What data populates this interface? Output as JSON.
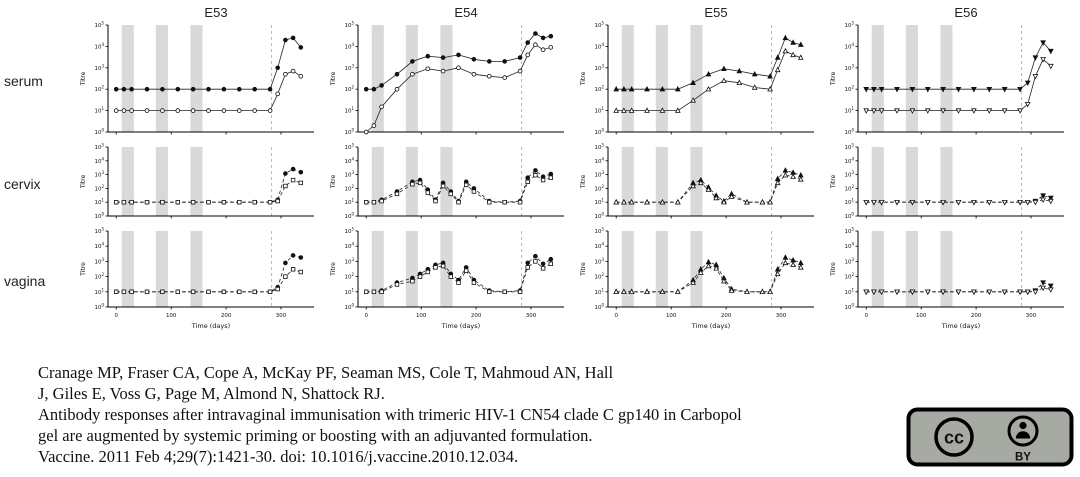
{
  "figure": {
    "columns": [
      "E53",
      "E54",
      "E55",
      "E56"
    ],
    "rows": [
      "serum",
      "cervix",
      "vagina"
    ],
    "axis": {
      "xlabel": "Time (days)",
      "ylabel": "Titre",
      "xticks": [
        0,
        100,
        200,
        300
      ],
      "xlim": [
        -15,
        360
      ],
      "ylim_exp": [
        0,
        5
      ],
      "bands": [
        [
          10,
          32
        ],
        [
          72,
          94
        ],
        [
          135,
          157
        ]
      ],
      "vline": 283
    }
  },
  "chart_data": [
    {
      "id": "E53-serum",
      "type": "line",
      "log_y": true,
      "line": "solid",
      "x": [
        0,
        14,
        28,
        56,
        84,
        112,
        140,
        168,
        196,
        224,
        252,
        280,
        294,
        308,
        322,
        336
      ],
      "series": [
        {
          "name": "filled symbol",
          "marker": "circle",
          "fill": "filled",
          "values": [
            100,
            100,
            100,
            100,
            100,
            100,
            100,
            100,
            100,
            100,
            100,
            100,
            1000,
            20000,
            25000,
            9000
          ]
        },
        {
          "name": "open symbol",
          "marker": "circle",
          "fill": "open",
          "values": [
            10,
            10,
            10,
            10,
            10,
            10,
            10,
            10,
            10,
            10,
            10,
            10,
            60,
            500,
            700,
            400
          ]
        }
      ]
    },
    {
      "id": "E54-serum",
      "type": "line",
      "log_y": true,
      "line": "solid",
      "x": [
        0,
        14,
        28,
        56,
        84,
        112,
        140,
        168,
        196,
        224,
        252,
        280,
        294,
        308,
        322,
        336
      ],
      "series": [
        {
          "name": "filled symbol",
          "marker": "circle",
          "fill": "filled",
          "values": [
            100,
            100,
            150,
            500,
            2000,
            3500,
            3000,
            4000,
            2500,
            2000,
            2000,
            3000,
            15000,
            40000,
            25000,
            30000
          ]
        },
        {
          "name": "open symbol",
          "marker": "circle",
          "fill": "open",
          "values": [
            1,
            2,
            15,
            100,
            500,
            900,
            700,
            1000,
            500,
            400,
            350,
            700,
            4000,
            12000,
            7000,
            9000
          ]
        }
      ]
    },
    {
      "id": "E55-serum",
      "type": "line",
      "log_y": true,
      "line": "solid",
      "x": [
        0,
        14,
        28,
        56,
        84,
        112,
        140,
        168,
        196,
        224,
        252,
        280,
        294,
        308,
        322,
        336
      ],
      "series": [
        {
          "name": "filled symbol",
          "marker": "triangle",
          "fill": "filled",
          "values": [
            100,
            100,
            100,
            100,
            100,
            100,
            200,
            500,
            900,
            700,
            500,
            400,
            3000,
            25000,
            15000,
            12000
          ]
        },
        {
          "name": "open symbol",
          "marker": "triangle",
          "fill": "open",
          "values": [
            10,
            10,
            10,
            10,
            10,
            10,
            30,
            100,
            250,
            200,
            120,
            100,
            800,
            6000,
            4000,
            3000
          ]
        }
      ]
    },
    {
      "id": "E56-serum",
      "type": "line",
      "log_y": true,
      "line": "solid",
      "x": [
        0,
        14,
        28,
        56,
        84,
        112,
        140,
        168,
        196,
        224,
        252,
        280,
        294,
        308,
        322,
        336
      ],
      "series": [
        {
          "name": "filled symbol",
          "marker": "triangle-down",
          "fill": "filled",
          "values": [
            100,
            100,
            100,
            100,
            100,
            100,
            100,
            100,
            100,
            100,
            100,
            100,
            200,
            3000,
            15000,
            6000
          ]
        },
        {
          "name": "open symbol",
          "marker": "triangle-down",
          "fill": "open",
          "values": [
            10,
            10,
            10,
            10,
            10,
            10,
            10,
            10,
            10,
            10,
            10,
            10,
            20,
            400,
            2500,
            1200
          ]
        }
      ]
    },
    {
      "id": "E53-cervix",
      "type": "line",
      "log_y": true,
      "line": "dashed",
      "x": [
        0,
        14,
        28,
        56,
        84,
        112,
        140,
        168,
        196,
        224,
        252,
        280,
        294,
        308,
        322,
        336
      ],
      "series": [
        {
          "name": "filled symbol",
          "marker": "circle",
          "fill": "filled",
          "values": [
            10,
            10,
            10,
            10,
            10,
            10,
            10,
            10,
            10,
            10,
            10,
            10,
            15,
            1200,
            2500,
            1500
          ]
        },
        {
          "name": "open symbol",
          "marker": "square",
          "fill": "open",
          "values": [
            10,
            10,
            10,
            10,
            10,
            10,
            10,
            10,
            10,
            10,
            10,
            10,
            12,
            150,
            400,
            250
          ]
        }
      ]
    },
    {
      "id": "E54-cervix",
      "type": "line",
      "log_y": true,
      "line": "dashed",
      "x": [
        0,
        14,
        28,
        56,
        84,
        98,
        112,
        126,
        140,
        154,
        168,
        182,
        196,
        224,
        252,
        280,
        294,
        308,
        322,
        336
      ],
      "series": [
        {
          "name": "filled symbol",
          "marker": "circle",
          "fill": "filled",
          "values": [
            10,
            10,
            15,
            60,
            300,
            400,
            80,
            15,
            250,
            60,
            12,
            300,
            100,
            12,
            10,
            12,
            600,
            2000,
            700,
            1100
          ]
        },
        {
          "name": "open symbol",
          "marker": "square",
          "fill": "open",
          "values": [
            10,
            10,
            12,
            40,
            200,
            250,
            50,
            12,
            150,
            40,
            10,
            180,
            60,
            10,
            10,
            10,
            300,
            900,
            400,
            600
          ]
        }
      ]
    },
    {
      "id": "E55-cervix",
      "type": "line",
      "log_y": true,
      "line": "dashed",
      "x": [
        0,
        14,
        28,
        56,
        84,
        112,
        140,
        154,
        168,
        182,
        196,
        210,
        238,
        266,
        280,
        294,
        308,
        322,
        336
      ],
      "series": [
        {
          "name": "filled symbol",
          "marker": "triangle",
          "fill": "filled",
          "values": [
            10,
            10,
            10,
            10,
            10,
            10,
            250,
            400,
            120,
            30,
            12,
            40,
            10,
            10,
            10,
            500,
            2000,
            1400,
            900
          ]
        },
        {
          "name": "open symbol",
          "marker": "triangle",
          "fill": "open",
          "values": [
            10,
            10,
            10,
            10,
            10,
            10,
            150,
            250,
            80,
            20,
            10,
            25,
            10,
            10,
            10,
            250,
            900,
            700,
            450
          ]
        }
      ]
    },
    {
      "id": "E56-cervix",
      "type": "line",
      "log_y": true,
      "line": "dashed",
      "x": [
        0,
        14,
        28,
        56,
        84,
        112,
        140,
        168,
        196,
        224,
        252,
        280,
        294,
        308,
        322,
        336
      ],
      "series": [
        {
          "name": "filled symbol",
          "marker": "triangle-down",
          "fill": "filled",
          "values": [
            10,
            10,
            10,
            10,
            10,
            10,
            10,
            10,
            10,
            10,
            10,
            10,
            10,
            12,
            30,
            20
          ]
        },
        {
          "name": "open symbol",
          "marker": "triangle-down",
          "fill": "open",
          "values": [
            10,
            10,
            10,
            10,
            10,
            10,
            10,
            10,
            10,
            10,
            10,
            10,
            10,
            10,
            15,
            12
          ]
        }
      ]
    },
    {
      "id": "E53-vagina",
      "type": "line",
      "log_y": true,
      "line": "dashed",
      "x": [
        0,
        14,
        28,
        56,
        84,
        112,
        140,
        168,
        196,
        224,
        252,
        280,
        294,
        308,
        322,
        336
      ],
      "series": [
        {
          "name": "filled symbol",
          "marker": "circle",
          "fill": "filled",
          "values": [
            10,
            10,
            10,
            10,
            10,
            10,
            10,
            10,
            10,
            10,
            10,
            10,
            20,
            800,
            2500,
            1800
          ]
        },
        {
          "name": "open symbol",
          "marker": "square",
          "fill": "open",
          "values": [
            10,
            10,
            10,
            10,
            10,
            10,
            10,
            10,
            10,
            10,
            10,
            10,
            15,
            100,
            300,
            200
          ]
        }
      ]
    },
    {
      "id": "E54-vagina",
      "type": "line",
      "log_y": true,
      "line": "dashed",
      "x": [
        0,
        14,
        28,
        56,
        84,
        98,
        112,
        126,
        140,
        154,
        168,
        182,
        196,
        224,
        252,
        280,
        294,
        308,
        322,
        336
      ],
      "series": [
        {
          "name": "filled symbol",
          "marker": "circle",
          "fill": "filled",
          "values": [
            10,
            10,
            12,
            40,
            80,
            150,
            300,
            600,
            800,
            150,
            60,
            400,
            60,
            12,
            10,
            12,
            800,
            2200,
            700,
            1400
          ]
        },
        {
          "name": "open symbol",
          "marker": "square",
          "fill": "open",
          "values": [
            10,
            10,
            10,
            30,
            50,
            100,
            200,
            400,
            500,
            100,
            40,
            250,
            40,
            10,
            10,
            10,
            400,
            1000,
            350,
            700
          ]
        }
      ]
    },
    {
      "id": "E55-vagina",
      "type": "line",
      "log_y": true,
      "line": "dashed",
      "x": [
        0,
        14,
        28,
        56,
        84,
        112,
        140,
        154,
        168,
        182,
        196,
        210,
        238,
        266,
        280,
        294,
        308,
        322,
        336
      ],
      "series": [
        {
          "name": "filled symbol",
          "marker": "triangle",
          "fill": "filled",
          "values": [
            10,
            10,
            10,
            10,
            10,
            10,
            60,
            300,
            900,
            600,
            80,
            15,
            10,
            10,
            10,
            300,
            1800,
            1200,
            800
          ]
        },
        {
          "name": "open symbol",
          "marker": "triangle",
          "fill": "open",
          "values": [
            10,
            10,
            10,
            10,
            10,
            10,
            40,
            180,
            500,
            350,
            50,
            12,
            10,
            10,
            10,
            150,
            800,
            600,
            400
          ]
        }
      ]
    },
    {
      "id": "E56-vagina",
      "type": "line",
      "log_y": true,
      "line": "dashed",
      "x": [
        0,
        14,
        28,
        56,
        84,
        112,
        140,
        168,
        196,
        224,
        252,
        280,
        294,
        308,
        322,
        336
      ],
      "series": [
        {
          "name": "filled symbol",
          "marker": "triangle-down",
          "fill": "filled",
          "values": [
            10,
            10,
            10,
            10,
            10,
            10,
            10,
            10,
            10,
            10,
            10,
            10,
            10,
            12,
            40,
            25
          ]
        },
        {
          "name": "open symbol",
          "marker": "triangle-down",
          "fill": "open",
          "values": [
            10,
            10,
            10,
            10,
            10,
            10,
            10,
            10,
            10,
            10,
            10,
            10,
            10,
            10,
            18,
            14
          ]
        }
      ]
    }
  ],
  "citation": {
    "lines": [
      "Cranage MP, Fraser CA, Cope A, McKay PF, Seaman MS, Cole T, Mahmoud AN, Hall",
      "J, Giles E, Voss G, Page M, Almond N, Shattock RJ.",
      "Antibody responses after intravaginal immunisation with trimeric HIV-1 CN54 clade C gp140 in Carbopol",
      "gel are augmented by systemic priming or boosting with an adjuvanted formulation.",
      "Vaccine. 2011 Feb 4;29(7):1421-30. doi: 10.1016/j.vaccine.2010.12.034."
    ]
  },
  "license": {
    "cc_label": "cc",
    "label": "BY"
  }
}
